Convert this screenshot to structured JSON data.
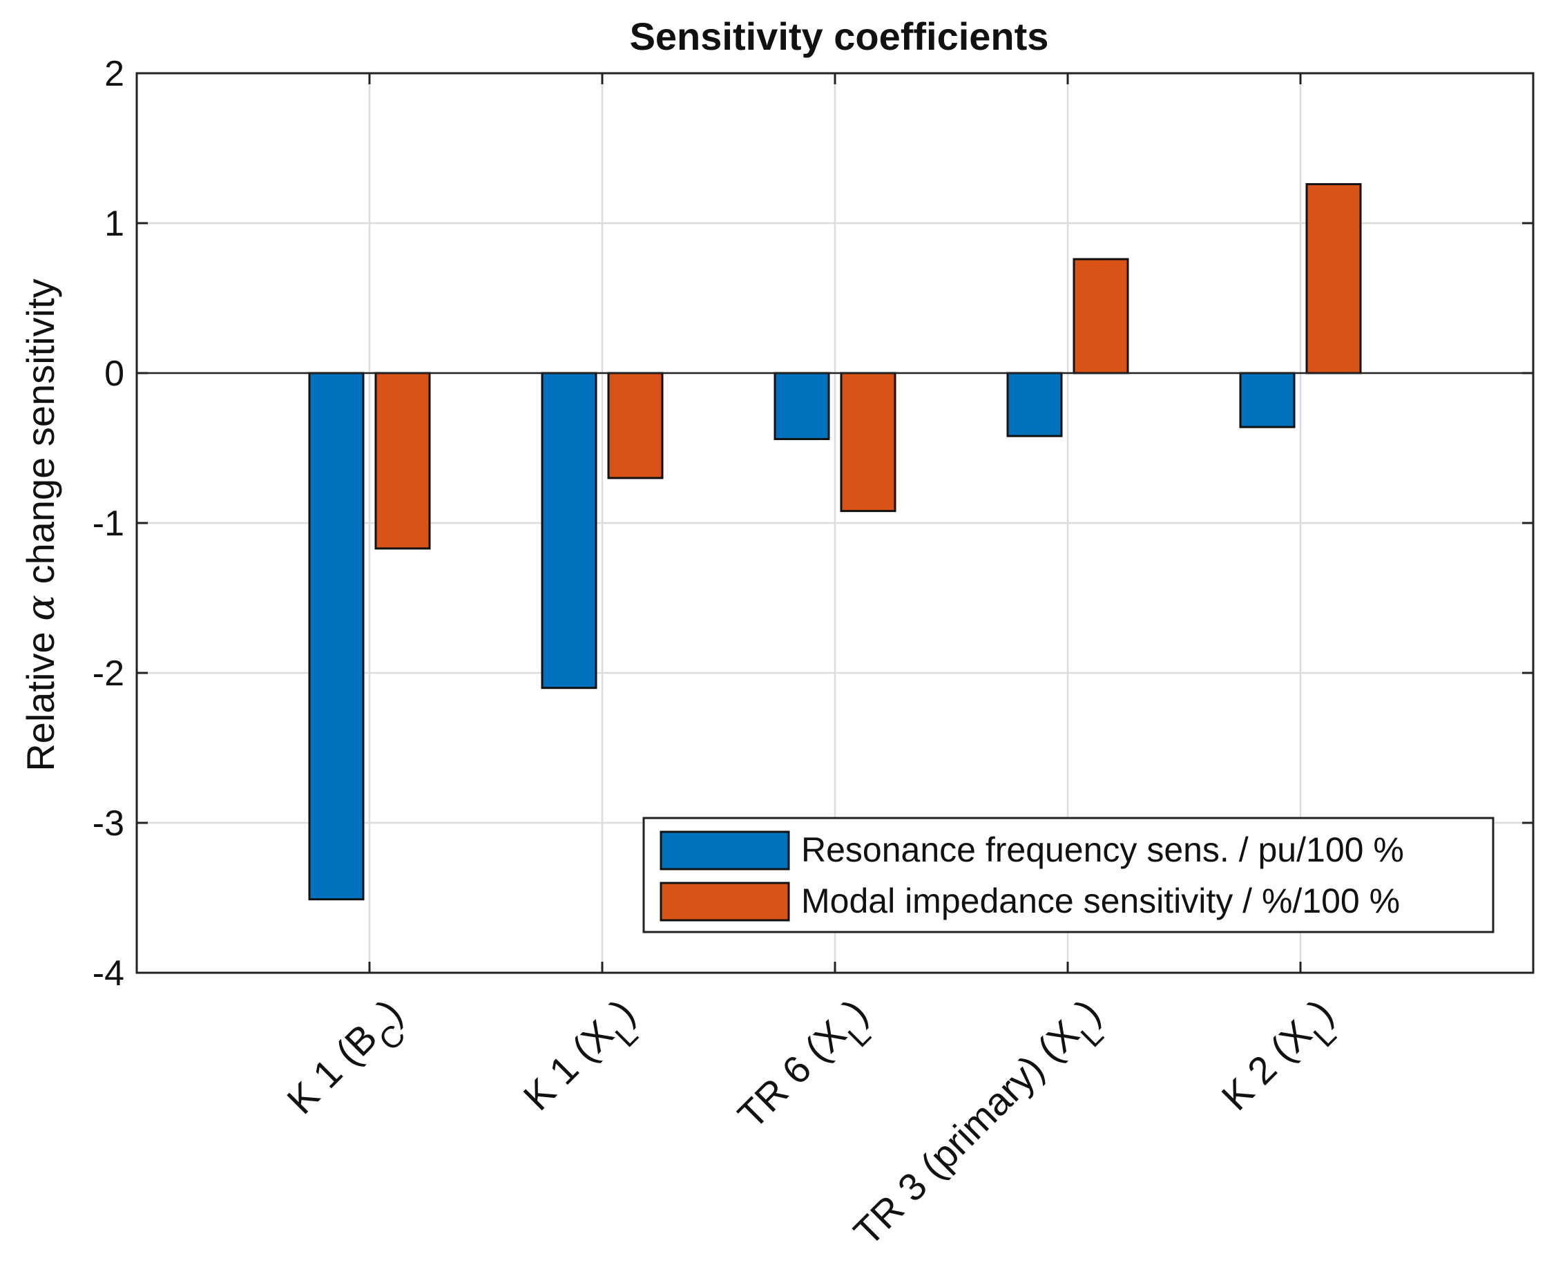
{
  "chart_data": {
    "type": "bar",
    "title": "Sensitivity coefficients",
    "xlabel": "",
    "ylabel": "Relative α change sensitivity",
    "ylabel_parts": {
      "before": "Relative ",
      "symbol": "α",
      "after": " change sensitivity"
    },
    "ylim": [
      -4,
      2
    ],
    "yticks": [
      2,
      1,
      0,
      -1,
      -2,
      -3,
      -4
    ],
    "ytick_labels": [
      "2",
      "1",
      "0",
      "-1",
      "-2",
      "-3",
      "-4"
    ],
    "grid": true,
    "legend_position": "bottom-right",
    "categories": [
      "K 1 (B C)",
      "K 1 (X L)",
      "TR 6 (X L)",
      "TR 3 (primary) (X L)",
      "K 2 (X L)"
    ],
    "category_labels": [
      {
        "main": "K 1 (B",
        "sub": "C",
        "end": ")"
      },
      {
        "main": "K 1 (X",
        "sub": "L",
        "end": ")"
      },
      {
        "main": "TR 6 (X",
        "sub": "L",
        "end": ")"
      },
      {
        "main": "TR 3 (primary) (X",
        "sub": "L",
        "end": ")"
      },
      {
        "main": "K 2 (X",
        "sub": "L",
        "end": ")"
      }
    ],
    "series": [
      {
        "name": "Resonance frequency sens. / pu/100 %",
        "color": "#0072BD",
        "values": [
          -3.51,
          -2.1,
          -0.44,
          -0.42,
          -0.36
        ]
      },
      {
        "name": "Modal impedance sensitivity / %/100 %",
        "color": "#D95319",
        "values": [
          -1.17,
          -0.7,
          -0.92,
          0.76,
          1.26
        ]
      }
    ]
  }
}
